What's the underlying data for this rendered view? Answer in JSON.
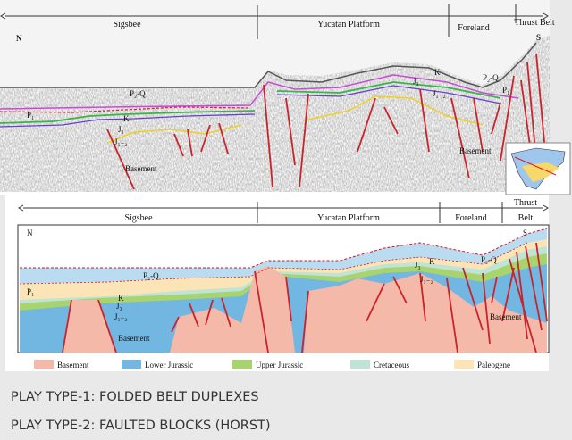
{
  "seismic": {
    "regions": [
      "Sigsbee",
      "Yucatan Platform",
      "Foreland",
      "Thrust Belt"
    ],
    "compass": [
      "N",
      "S"
    ],
    "layers": {
      "p2q_left": "P₂-Q",
      "p2q_right": "P₂-Q",
      "p1_left": "P₁",
      "p1_right": "P₁",
      "k_left": "K",
      "k_right": "K",
      "j3_left": "J₃",
      "j3_right": "J₃",
      "j12_left": "J₁₋₂",
      "j12_right": "J₁₋₂",
      "basement_left": "Basement",
      "basement_right": "Basement"
    }
  },
  "section": {
    "regions": [
      "Sigsbee",
      "Yucatan Platform",
      "Foreland",
      "Thrust",
      "Belt"
    ],
    "compass": [
      "N",
      "S"
    ],
    "layers": {
      "p2q_left": "P₂-Q",
      "p2q_right": "P₂-Q",
      "p1_left": "P₁",
      "k_left": "K",
      "k_right": "K",
      "j3_left": "J₃",
      "j3_right": "J₃",
      "j12_left": "J₁₋₂",
      "j12_right": "J₁₋₂",
      "basement_left": "Basement",
      "basement_right": "Basement"
    },
    "legend": [
      "Basement",
      "Lower Jurassic",
      "Upper Jurassic",
      "Cretaceous",
      "Paleogene"
    ]
  },
  "captions": [
    "PLAY TYPE-1: FOLDED BELT DUPLEXES",
    "PLAY TYPE-2: FAULTED BLOCKS (HORST)"
  ]
}
